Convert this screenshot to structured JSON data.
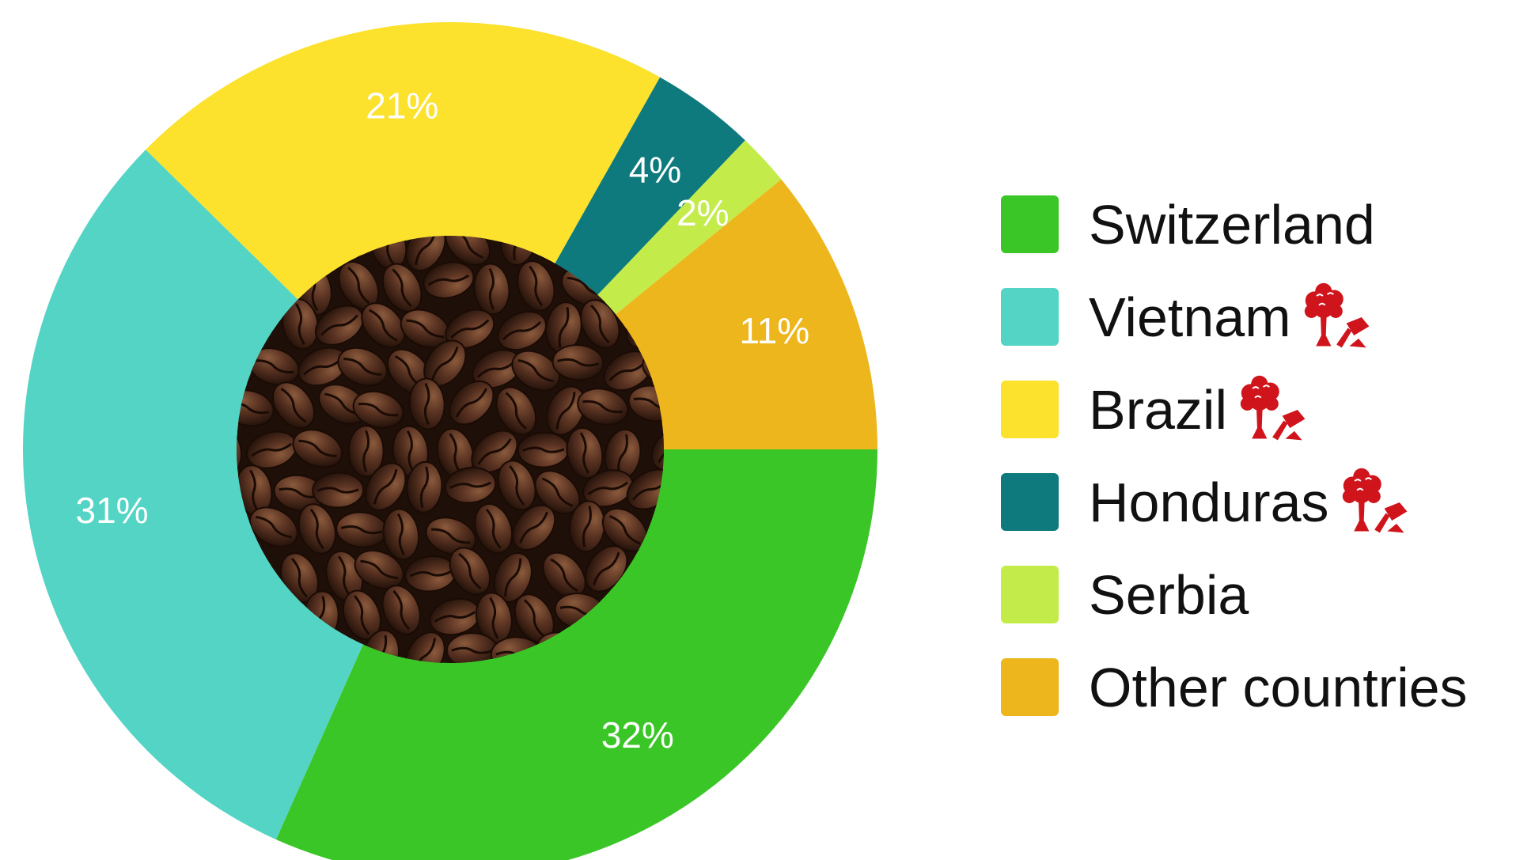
{
  "chart_data": {
    "type": "pie",
    "style": "donut",
    "title": "",
    "start_angle_deg": 0,
    "direction": "clockwise",
    "slices": [
      {
        "label": "Switzerland",
        "value": 32,
        "display": "32%",
        "color": "#3ac627",
        "icon": false
      },
      {
        "label": "Vietnam",
        "value": 31,
        "display": "31%",
        "color": "#53d4c5",
        "icon": true
      },
      {
        "label": "Brazil",
        "value": 21,
        "display": "21%",
        "color": "#fce12d",
        "icon": true
      },
      {
        "label": "Honduras",
        "value": 4,
        "display": "4%",
        "color": "#0e7a7d",
        "icon": true
      },
      {
        "label": "Serbia",
        "value": 2,
        "display": "2%",
        "color": "#c3ec4a",
        "icon": false
      },
      {
        "label": "Other countries",
        "value": 11,
        "display": "11%",
        "color": "#edb61c",
        "icon": false
      }
    ],
    "legend_position": "right",
    "center_image": "coffee-beans-photo",
    "icon_name": "deforestation-icon",
    "icon_color": "#d0141c"
  }
}
